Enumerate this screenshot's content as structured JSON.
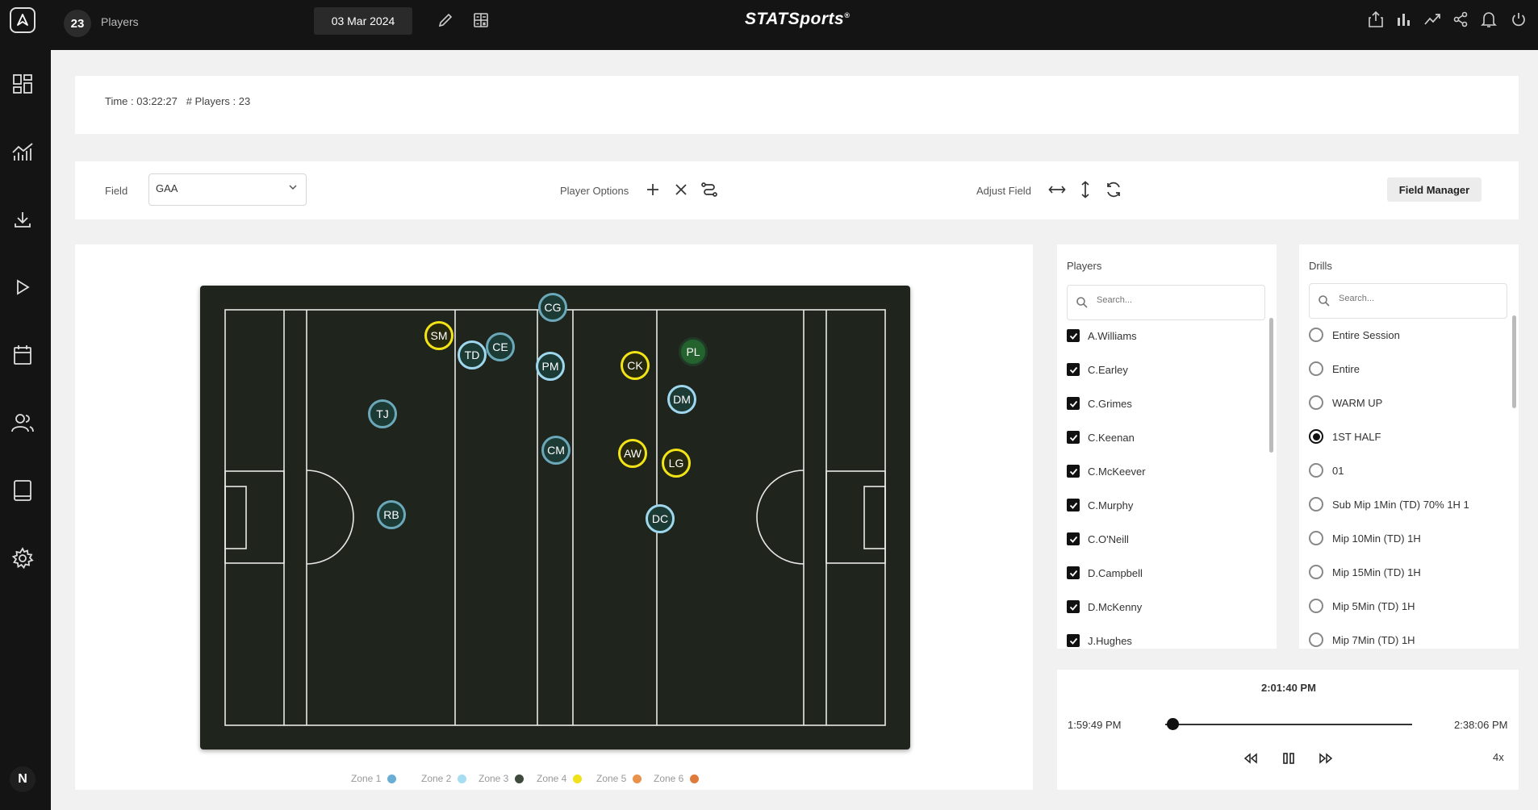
{
  "header": {
    "player_count": "23",
    "players_label": "Players",
    "date": "03 Mar 2024",
    "brand": "STATSports",
    "brand_mark": "®"
  },
  "sidebar": {
    "user_initial": "N",
    "items": [
      "dashboard-icon",
      "analytics-icon",
      "download-icon",
      "play-icon",
      "calendar-icon",
      "team-icon",
      "tablet-icon",
      "settings-icon"
    ]
  },
  "info": {
    "time": "Time : 03:22:27",
    "players": "# Players : 23"
  },
  "toolbar": {
    "field_label": "Field",
    "field_value": "GAA",
    "player_options_label": "Player Options",
    "adjust_field_label": "Adjust Field",
    "field_manager_label": "Field Manager"
  },
  "pitch": {
    "players": [
      {
        "initials": "CG",
        "zone": 1
      },
      {
        "initials": "SM",
        "zone": 4
      },
      {
        "initials": "TD",
        "zone": 2
      },
      {
        "initials": "CE",
        "zone": 1
      },
      {
        "initials": "PM",
        "zone": 2
      },
      {
        "initials": "CK",
        "zone": 4
      },
      {
        "initials": "PL",
        "zone": 3
      },
      {
        "initials": "DM",
        "zone": 2
      },
      {
        "initials": "TJ",
        "zone": 1
      },
      {
        "initials": "CM",
        "zone": 1
      },
      {
        "initials": "AW",
        "zone": 4
      },
      {
        "initials": "LG",
        "zone": 4
      },
      {
        "initials": "RB",
        "zone": 1
      },
      {
        "initials": "DC",
        "zone": 2
      }
    ]
  },
  "legend": [
    {
      "label": "Zone 1",
      "color": "#6aaed6"
    },
    {
      "label": "Zone 2",
      "color": "#a6ddf2"
    },
    {
      "label": "Zone 3",
      "color": "#3d4a3c"
    },
    {
      "label": "Zone 4",
      "color": "#f0e21a"
    },
    {
      "label": "Zone 5",
      "color": "#e8924c"
    },
    {
      "label": "Zone 6",
      "color": "#e07a3a"
    }
  ],
  "players_panel": {
    "title": "Players",
    "search_placeholder": "Search...",
    "items": [
      "A.Williams",
      "C.Earley",
      "C.Grimes",
      "C.Keenan",
      "C.McKeever",
      "C.Murphy",
      "C.O'Neill",
      "D.Campbell",
      "D.McKenny",
      "J.Hughes"
    ]
  },
  "drills_panel": {
    "title": "Drills",
    "search_placeholder": "Search...",
    "items": [
      "Entire Session",
      "Entire",
      "WARM UP",
      "1ST HALF",
      "01",
      "Sub Mip 1Min (TD) 70% 1H 1",
      "Mip 10Min (TD) 1H",
      "Mip 15Min (TD) 1H",
      "Mip 5Min (TD) 1H",
      "Mip 7Min (TD) 1H"
    ],
    "selected": "1ST HALF"
  },
  "playback": {
    "current_time": "2:01:40 PM",
    "start_time": "1:59:49 PM",
    "end_time": "2:38:06 PM",
    "speed": "4x",
    "progress": 0.03
  }
}
